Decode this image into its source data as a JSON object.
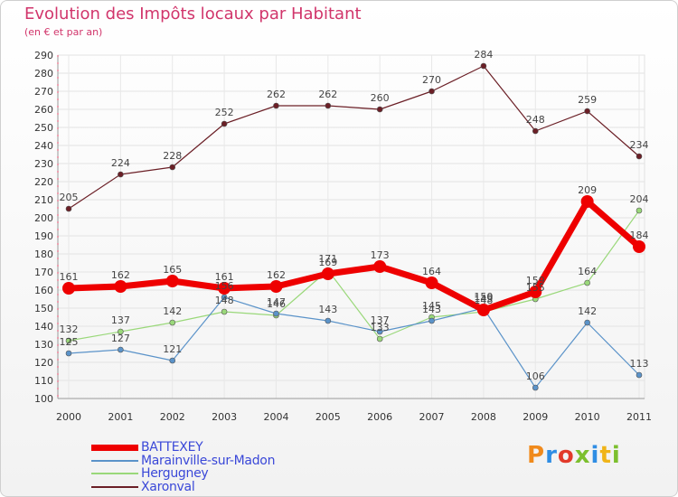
{
  "header": {
    "title": "Evolution des Impôts locaux par Habitant",
    "subtitle": "(en € et par an)"
  },
  "brand": {
    "name": "Proxiti",
    "letters": [
      {
        "ch": "P",
        "color": "#f08a1c"
      },
      {
        "ch": "r",
        "color": "#2f8de4"
      },
      {
        "ch": "o",
        "color": "#e23a2a"
      },
      {
        "ch": "x",
        "color": "#7cbf2e"
      },
      {
        "ch": "i",
        "color": "#2f8de4"
      },
      {
        "ch": "t",
        "color": "#f0b418"
      },
      {
        "ch": "i",
        "color": "#7cbf2e"
      }
    ]
  },
  "chart_data": {
    "type": "line",
    "title": "Evolution des Impôts locaux par Habitant",
    "subtitle": "(en € et par an)",
    "x": [
      "2000",
      "2001",
      "2002",
      "2003",
      "2004",
      "2005",
      "2006",
      "2007",
      "2008",
      "2009",
      "2010",
      "2011"
    ],
    "ylim": [
      100,
      290
    ],
    "yticks": [
      100,
      110,
      120,
      130,
      140,
      150,
      160,
      170,
      180,
      190,
      200,
      210,
      220,
      230,
      240,
      250,
      260,
      270,
      280,
      290
    ],
    "grid": true,
    "legend_position": "bottom-left",
    "series": [
      {
        "name": "BATTEXEY",
        "color": "#ee0000",
        "width": 7,
        "marker": 7,
        "values": [
          161,
          162,
          165,
          161,
          162,
          169,
          173,
          164,
          149,
          159,
          209,
          184
        ],
        "labels": [
          "161",
          "162",
          "165",
          "161",
          "162",
          "169",
          "173",
          "164",
          "149",
          "159",
          "209",
          "184"
        ]
      },
      {
        "name": "Marainville-sur-Madon",
        "color": "#5b93c9",
        "width": 1.2,
        "marker": 3,
        "values": [
          125,
          127,
          121,
          156,
          147,
          143,
          137,
          143,
          150,
          106,
          142,
          113
        ],
        "labels": [
          "125",
          "127",
          "121",
          "156",
          "147",
          "143",
          "137",
          "143",
          "150",
          "106",
          "142",
          "113"
        ]
      },
      {
        "name": "Hergugney",
        "color": "#9ad87a",
        "width": 1.2,
        "marker": 3,
        "values": [
          132,
          137,
          142,
          148,
          146,
          171,
          133,
          145,
          148,
          155,
          164,
          204
        ],
        "labels": [
          "132",
          "137",
          "142",
          "148",
          "146",
          "171",
          "133",
          "145",
          "148",
          "155",
          "164",
          "204"
        ]
      },
      {
        "name": "Xaronval",
        "color": "#6b1f26",
        "width": 1.2,
        "marker": 3,
        "values": [
          205,
          224,
          228,
          252,
          262,
          262,
          260,
          270,
          284,
          248,
          259,
          234
        ],
        "labels": [
          "205",
          "224",
          "228",
          "252",
          "262",
          "262",
          "260",
          "270",
          "284",
          "248",
          "259",
          "234"
        ]
      }
    ]
  }
}
